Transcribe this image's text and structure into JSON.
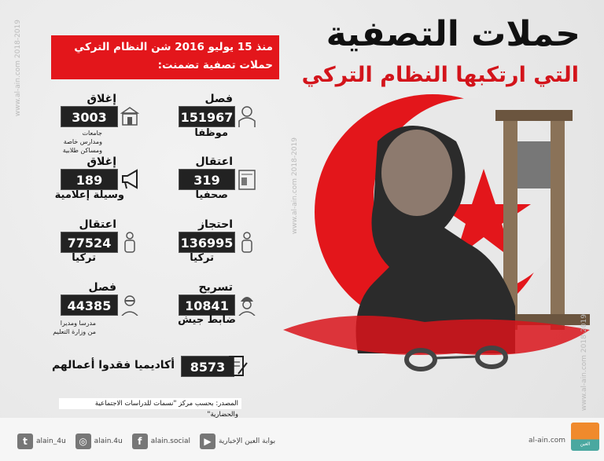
{
  "header": {
    "title": "حملات التصفية",
    "subtitle": "التي ارتكبها النظام التركي"
  },
  "intro": {
    "line1": "منذ 15 يوليو 2016 شن النظام التركي",
    "line2": "حملات تصفية تضمنت:"
  },
  "items": [
    {
      "label": "فصل",
      "value": "151967",
      "sub": "موظفا",
      "icon": "employee-icon"
    },
    {
      "label": "إغلاق",
      "value": "3003",
      "sub_lines": [
        "جامعات",
        "ومدارس خاصة",
        "ومساكن طلابية"
      ],
      "icon": "building-icon"
    },
    {
      "label": "اعتقال",
      "value": "319",
      "sub": "صحفيا",
      "icon": "newspaper-icon"
    },
    {
      "label": "إغلاق",
      "value": "189",
      "sub": "وسيلة إعلامية",
      "icon": "megaphone-icon"
    },
    {
      "label": "احتجاز",
      "value": "136995",
      "sub": "تركيا",
      "icon": "person-icon"
    },
    {
      "label": "اعتقال",
      "value": "77524",
      "sub": "تركيا",
      "icon": "person-icon"
    },
    {
      "label": "تسريح",
      "value": "10841",
      "sub": "ضابط جيش",
      "icon": "soldier-icon"
    },
    {
      "label": "فصل",
      "value": "44385",
      "sub_lines": [
        "مدرسا ومديرا",
        "من وزارة التعليم"
      ],
      "icon": "teacher-icon"
    }
  ],
  "academics": {
    "value": "8573",
    "text": "أكاديميا فقدوا أعمالهم",
    "icon": "document-pen-icon"
  },
  "source": "المصدر: بحسب مركز \"نسمات للدراسات الاجتماعية والحضارية\"",
  "watermark": "www.al-ain.com 2018-2019",
  "footer": {
    "social": [
      {
        "icon": "twitter-icon",
        "label": "alain_4u"
      },
      {
        "icon": "instagram-icon",
        "label": "alain.4u"
      },
      {
        "icon": "facebook-icon",
        "label": "alain.social"
      },
      {
        "icon": "youtube-icon",
        "label": "بوابة العين الإخبارية"
      }
    ],
    "site": "al-ain.com",
    "logo_text": "العين الإخبارية"
  },
  "colors": {
    "accent": "#e3161b",
    "box": "#222222"
  }
}
